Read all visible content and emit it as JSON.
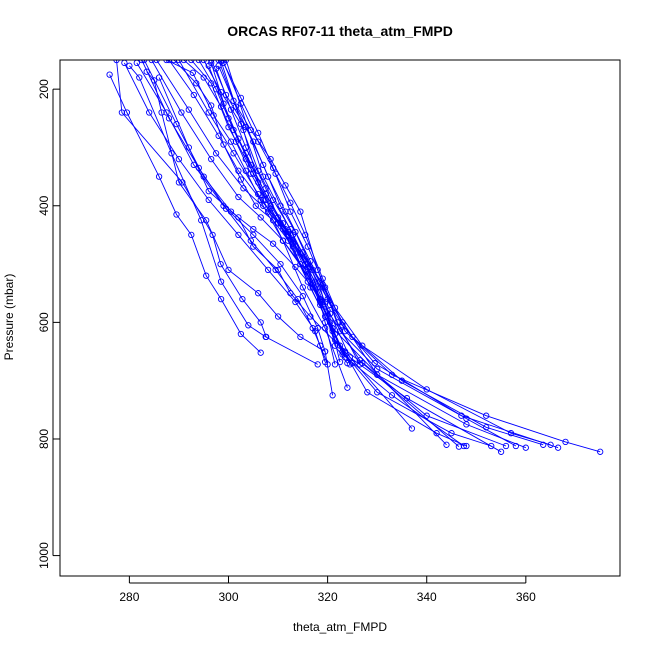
{
  "chart_data": {
    "type": "line",
    "title": "ORCAS RF07-11 theta_atm_FMPD",
    "xlabel": "theta_atm_FMPD",
    "ylabel": "Pressure (mbar)",
    "xlim": [
      266,
      379
    ],
    "ylim": [
      1035,
      150
    ],
    "y_reversed": true,
    "xticks": [
      280,
      300,
      320,
      340,
      360
    ],
    "yticks": [
      200,
      400,
      600,
      800,
      1000
    ],
    "grid": false,
    "legend": "none",
    "series_color": "#0000ff",
    "series": [
      {
        "x": [
          277.4,
          278.5,
          290.7,
          296.8,
          298.4,
          302.8,
          306.5,
          307.6
        ],
        "y": [
          150,
          240,
          360,
          450,
          500,
          560,
          600,
          625
        ]
      },
      {
        "x": [
          276.0,
          279.5,
          286.0,
          289.5,
          292.5,
          295.5,
          298.5,
          302.5,
          306.5
        ],
        "y": [
          175,
          240,
          350,
          415,
          450,
          520,
          560,
          620,
          652
        ]
      },
      {
        "x": [
          280.0,
          282.0,
          288.5,
          294.5,
          298.5,
          304.0,
          307.5,
          318.0
        ],
        "y": [
          160,
          180,
          310,
          425,
          530,
          605,
          625,
          672
        ]
      },
      {
        "x": [
          283.5,
          285.0,
          286.5,
          290.0,
          295.5,
          300.0,
          306.0,
          310.0,
          314.5,
          319.5
        ],
        "y": [
          170,
          185,
          240,
          360,
          425,
          510,
          550,
          590,
          625,
          650
        ]
      },
      {
        "x": [
          286.0,
          292.0,
          296.0,
          302.0,
          305.0,
          310.0,
          312.5,
          316.5,
          323.5,
          337.0
        ],
        "y": [
          180,
          300,
          375,
          420,
          470,
          510,
          550,
          590,
          650,
          782
        ]
      },
      {
        "x": [
          287.5,
          292.8,
          297.0,
          300.5,
          303.5,
          307.0,
          311.0,
          316.0,
          319.0,
          321.0,
          344.0
        ],
        "y": [
          150,
          172,
          245,
          290,
          340,
          400,
          460,
          520,
          570,
          610,
          810
        ]
      },
      {
        "x": [
          289.0,
          293.5,
          296.5,
          299.0,
          302.5,
          305.5,
          309.0,
          313.0,
          316.5,
          321.0,
          328.0,
          342.0,
          348.0
        ],
        "y": [
          150,
          190,
          228,
          295,
          355,
          400,
          425,
          470,
          540,
          615,
          720,
          790,
          812
        ]
      },
      {
        "x": [
          291.0,
          295.0,
          298.5,
          301.5,
          304.5,
          307.5,
          311.0,
          314.5,
          318.5,
          323.0,
          330.0,
          345.0,
          353.0
        ],
        "y": [
          150,
          180,
          230,
          290,
          345,
          390,
          440,
          500,
          565,
          650,
          720,
          790,
          812
        ]
      },
      {
        "x": [
          292.5,
          296.5,
          300.0,
          303.5,
          306.0,
          308.5,
          312.0,
          316.0,
          320.0,
          326.5,
          340.0,
          356.0
        ],
        "y": [
          150,
          190,
          265,
          320,
          360,
          400,
          445,
          505,
          580,
          665,
          760,
          812
        ]
      },
      {
        "x": [
          294.0,
          297.5,
          301.0,
          304.5,
          307.5,
          311.0,
          315.0,
          319.0,
          323.0,
          330.0,
          348.0,
          360.0
        ],
        "y": [
          150,
          200,
          270,
          330,
          380,
          430,
          480,
          535,
          600,
          690,
          775,
          815
        ]
      },
      {
        "x": [
          295.0,
          298.5,
          302.5,
          306.0,
          309.0,
          312.5,
          316.0,
          320.0,
          325.0,
          335.0,
          352.0,
          363.5
        ],
        "y": [
          150,
          205,
          260,
          340,
          390,
          440,
          500,
          560,
          625,
          700,
          780,
          810
        ]
      },
      {
        "x": [
          296.5,
          299.5,
          303.5,
          307.0,
          310.5,
          313.5,
          317.0,
          321.5,
          327.0,
          340.0,
          357.0,
          365.0
        ],
        "y": [
          150,
          210,
          265,
          330,
          400,
          445,
          510,
          575,
          640,
          715,
          790,
          810
        ]
      },
      {
        "x": [
          298.0,
          301.0,
          304.5,
          308.5,
          311.5,
          314.5,
          318.0,
          322.5,
          330.0,
          347.0,
          366.5
        ],
        "y": [
          150,
          220,
          270,
          320,
          365,
          410,
          510,
          615,
          680,
          760,
          815
        ]
      },
      {
        "x": [
          298.8,
          302.5,
          306.0,
          309.5,
          312.5,
          315.5,
          319.0,
          323.5,
          333.0,
          352.0,
          368.0,
          375.0
        ],
        "y": [
          150,
          225,
          290,
          345,
          395,
          450,
          525,
          615,
          690,
          760,
          805,
          822
        ]
      },
      {
        "x": [
          297.5,
          300.5,
          303.5,
          307.5,
          310.0,
          313.0,
          317.0,
          320.5,
          324.5,
          336.0,
          355.0
        ],
        "y": [
          165,
          235,
          300,
          370,
          420,
          465,
          535,
          585,
          660,
          730,
          822
        ]
      },
      {
        "x": [
          298.0,
          301.5,
          305.0,
          308.0,
          311.5,
          316.5,
          320.5,
          323.0,
          329.5,
          348.0,
          358.0
        ],
        "y": [
          160,
          230,
          290,
          350,
          410,
          495,
          570,
          605,
          670,
          765,
          812
        ]
      },
      {
        "x": [
          296.0,
          299.0,
          302.0,
          305.0,
          308.5,
          312.0,
          316.0,
          319.5,
          322.5,
          327.0,
          346.5
        ],
        "y": [
          160,
          225,
          285,
          345,
          405,
          460,
          530,
          590,
          640,
          670,
          813
        ]
      },
      {
        "x": [
          298.5,
          303.0,
          307.0,
          311.0,
          315.0,
          319.5,
          324.0
        ],
        "y": [
          152,
          270,
          390,
          460,
          540,
          610,
          712
        ]
      },
      {
        "x": [
          299.0,
          302.5,
          306.0,
          309.0,
          312.5,
          316.0,
          319.5,
          322.0,
          326.5
        ],
        "y": [
          155,
          215,
          275,
          335,
          410,
          470,
          540,
          600,
          672
        ]
      },
      {
        "x": [
          296.5,
          300.0,
          303.5,
          307.5,
          311.5,
          315.5,
          318.5,
          321.5,
          325.0
        ],
        "y": [
          155,
          250,
          310,
          380,
          440,
          500,
          570,
          630,
          670
        ]
      },
      {
        "x": [
          283.0,
          289.5,
          295.0,
          300.5,
          305.0,
          309.0,
          313.5,
          317.0,
          320.0,
          321.5,
          324.0
        ],
        "y": [
          150,
          260,
          350,
          410,
          440,
          465,
          505,
          540,
          590,
          640,
          670
        ]
      },
      {
        "x": [
          284.5,
          290.5,
          296.5,
          302.0,
          306.5,
          311.0,
          315.5,
          318.5,
          321.0,
          323.5
        ],
        "y": [
          150,
          240,
          320,
          385,
          420,
          460,
          510,
          560,
          610,
          660
        ]
      },
      {
        "x": [
          285.5,
          292.0,
          297.5,
          303.0,
          308.0,
          312.0,
          316.5,
          319.5,
          321.5,
          324.5
        ],
        "y": [
          150,
          235,
          310,
          370,
          410,
          450,
          505,
          565,
          620,
          672
        ]
      },
      {
        "x": [
          288.0,
          293.0,
          298.0,
          302.0,
          306.5,
          310.5,
          315.0,
          318.5,
          320.5,
          322.5
        ],
        "y": [
          150,
          210,
          280,
          340,
          390,
          430,
          480,
          540,
          600,
          668
        ]
      },
      {
        "x": [
          290.0,
          296.0,
          301.0,
          306.0,
          310.0,
          314.0,
          317.5,
          319.5,
          321.5
        ],
        "y": [
          150,
          240,
          310,
          380,
          430,
          480,
          530,
          600,
          672
        ]
      },
      {
        "x": [
          281.5,
          287.5,
          293.0,
          299.0,
          305.0,
          310.5,
          315.0,
          318.0,
          319.5,
          321.0
        ],
        "y": [
          155,
          240,
          330,
          400,
          450,
          500,
          555,
          610,
          650,
          725
        ]
      },
      {
        "x": [
          282.5,
          288.0,
          294.0,
          299.5,
          304.5,
          309.5,
          314.0,
          317.0,
          318.5,
          320.0
        ],
        "y": [
          150,
          250,
          335,
          405,
          460,
          510,
          560,
          610,
          640,
          672
        ]
      },
      {
        "x": [
          279.0,
          284.0,
          290.0,
          296.0,
          302.0,
          308.0,
          313.5,
          317.5,
          319.5
        ],
        "y": [
          155,
          240,
          320,
          390,
          450,
          510,
          565,
          615,
          668
        ]
      },
      {
        "x": [
          299.5,
          307.0,
          313.0,
          318.5,
          323.0,
          333.0,
          347.5
        ],
        "y": [
          150,
          350,
          450,
          560,
          655,
          725,
          812
        ]
      }
    ]
  }
}
